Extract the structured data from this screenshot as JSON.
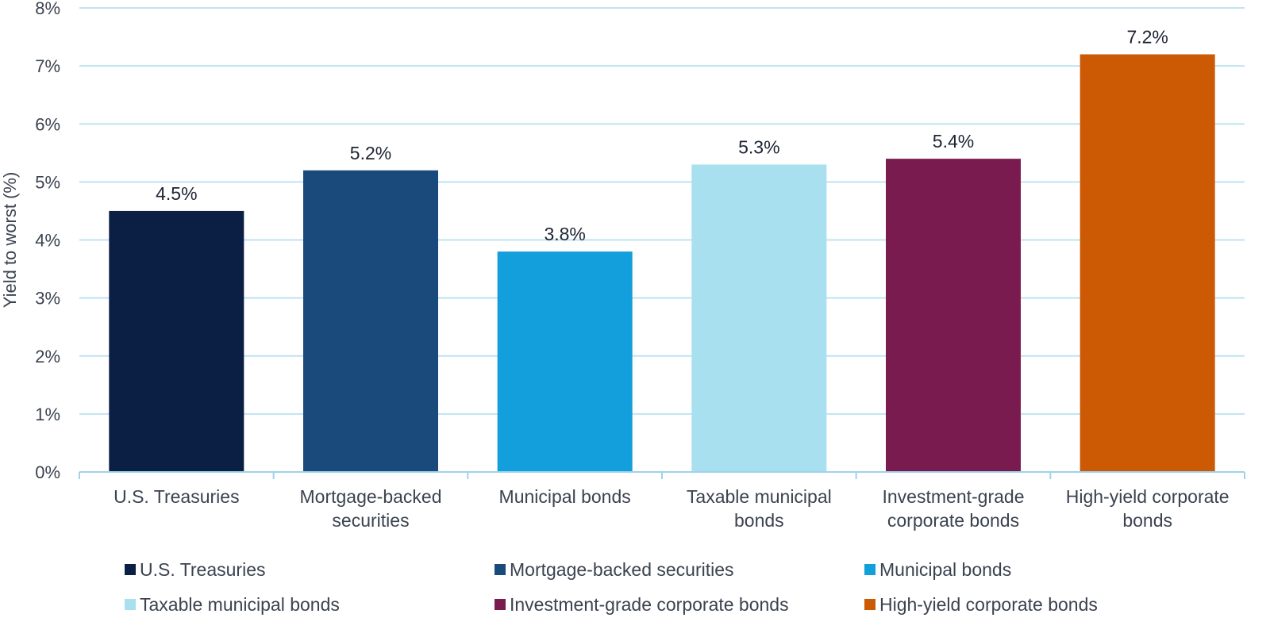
{
  "chart_data": {
    "type": "bar",
    "title": "",
    "xlabel": "",
    "ylabel": "Yield to worst (%)",
    "ylim": [
      0,
      8
    ],
    "yticks": [
      "0%",
      "1%",
      "2%",
      "3%",
      "4%",
      "5%",
      "6%",
      "7%",
      "8%"
    ],
    "grid": true,
    "legend_position": "bottom",
    "categories": [
      [
        "U.S. Treasuries"
      ],
      [
        "Mortgage-backed",
        "securities"
      ],
      [
        "Municipal bonds"
      ],
      [
        "Taxable municipal",
        "bonds"
      ],
      [
        "Investment-grade",
        "corporate bonds"
      ],
      [
        "High-yield corporate",
        "bonds"
      ]
    ],
    "values": [
      4.5,
      5.2,
      3.8,
      5.3,
      5.4,
      7.2
    ],
    "data_labels": [
      "4.5%",
      "5.2%",
      "3.8%",
      "5.3%",
      "5.4%",
      "7.2%"
    ],
    "colors": [
      "#0b1f45",
      "#1a4a7c",
      "#139fdb",
      "#a9e0ef",
      "#7a1b50",
      "#cc5a04"
    ],
    "legend": [
      "U.S. Treasuries",
      "Mortgage-backed securities",
      "Municipal bonds",
      "Taxable municipal bonds",
      "Investment-grade corporate bonds",
      "High-yield corporate bonds"
    ],
    "grid_color": "#bfe3f2",
    "axis_color": "#9fd3ea"
  }
}
